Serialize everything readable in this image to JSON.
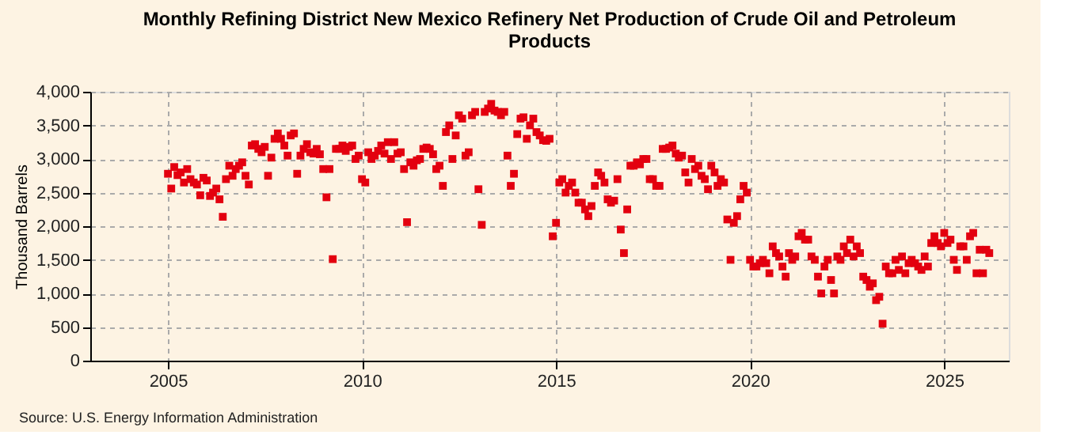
{
  "chart_data": {
    "type": "scatter",
    "title": "Monthly Refining District New Mexico Refinery Net Production of Crude Oil and Petroleum Products",
    "ylabel": "Thousand Barrels",
    "annotations": [
      "Source: U.S. Energy Information Administration"
    ],
    "marker": "square",
    "grid": true,
    "legend": false,
    "xlim": [
      "2003-01",
      "2026-09"
    ],
    "xticks": [
      "2005",
      "2010",
      "2015",
      "2020",
      "2025"
    ],
    "ylim": [
      0,
      4000
    ],
    "yticks": [
      0,
      {
        "value": 500,
        "label": "500"
      },
      {
        "value": 1000,
        "label": "1,000"
      },
      {
        "value": 1500,
        "label": "1,500"
      },
      {
        "value": 2000,
        "label": "2,000"
      },
      {
        "value": 2500,
        "label": "2,500"
      },
      {
        "value": 3000,
        "label": "3,000"
      },
      {
        "value": 3500,
        "label": "3,500"
      },
      {
        "value": 4000,
        "label": "4,000"
      }
    ],
    "series": [
      {
        "color": "#e3000f",
        "x": [
          "2005-01",
          "2005-02",
          "2005-03",
          "2005-04",
          "2005-05",
          "2005-06",
          "2005-07",
          "2005-08",
          "2005-09",
          "2005-10",
          "2005-11",
          "2005-12",
          "2006-01",
          "2006-02",
          "2006-03",
          "2006-04",
          "2006-05",
          "2006-06",
          "2006-07",
          "2006-08",
          "2006-09",
          "2006-10",
          "2006-11",
          "2006-12",
          "2007-01",
          "2007-02",
          "2007-03",
          "2007-04",
          "2007-05",
          "2007-06",
          "2007-07",
          "2007-08",
          "2007-09",
          "2007-10",
          "2007-11",
          "2007-12",
          "2008-01",
          "2008-02",
          "2008-03",
          "2008-04",
          "2008-05",
          "2008-06",
          "2008-07",
          "2008-08",
          "2008-09",
          "2008-10",
          "2008-11",
          "2008-12",
          "2009-01",
          "2009-02",
          "2009-03",
          "2009-04",
          "2009-05",
          "2009-06",
          "2009-07",
          "2009-08",
          "2009-09",
          "2009-10",
          "2009-11",
          "2009-12",
          "2010-01",
          "2010-02",
          "2010-03",
          "2010-04",
          "2010-05",
          "2010-06",
          "2010-07",
          "2010-08",
          "2010-09",
          "2010-10",
          "2010-11",
          "2010-12",
          "2011-01",
          "2011-02",
          "2011-03",
          "2011-04",
          "2011-05",
          "2011-06",
          "2011-07",
          "2011-08",
          "2011-09",
          "2011-10",
          "2011-11",
          "2011-12",
          "2012-01",
          "2012-02",
          "2012-03",
          "2012-04",
          "2012-05",
          "2012-06",
          "2012-07",
          "2012-08",
          "2012-09",
          "2012-10",
          "2012-11",
          "2012-12",
          "2013-01",
          "2013-02",
          "2013-03",
          "2013-04",
          "2013-05",
          "2013-06",
          "2013-07",
          "2013-08",
          "2013-09",
          "2013-10",
          "2013-11",
          "2013-12",
          "2014-01",
          "2014-02",
          "2014-03",
          "2014-04",
          "2014-05",
          "2014-06",
          "2014-07",
          "2014-08",
          "2014-09",
          "2014-10",
          "2014-11",
          "2014-12",
          "2015-01",
          "2015-02",
          "2015-03",
          "2015-04",
          "2015-05",
          "2015-06",
          "2015-07",
          "2015-08",
          "2015-09",
          "2015-10",
          "2015-11",
          "2015-12",
          "2016-01",
          "2016-02",
          "2016-03",
          "2016-04",
          "2016-05",
          "2016-06",
          "2016-07",
          "2016-08",
          "2016-09",
          "2016-10",
          "2016-11",
          "2016-12",
          "2017-01",
          "2017-02",
          "2017-03",
          "2017-04",
          "2017-05",
          "2017-06",
          "2017-07",
          "2017-08",
          "2017-09",
          "2017-10",
          "2017-11",
          "2017-12",
          "2018-01",
          "2018-02",
          "2018-03",
          "2018-04",
          "2018-05",
          "2018-06",
          "2018-07",
          "2018-08",
          "2018-09",
          "2018-10",
          "2018-11",
          "2018-12",
          "2019-01",
          "2019-02",
          "2019-03",
          "2019-04",
          "2019-05",
          "2019-06",
          "2019-07",
          "2019-08",
          "2019-09",
          "2019-10",
          "2019-11",
          "2019-12",
          "2020-01",
          "2020-02",
          "2020-03",
          "2020-04",
          "2020-05",
          "2020-06",
          "2020-07",
          "2020-08",
          "2020-09",
          "2020-10",
          "2020-11",
          "2020-12",
          "2021-01",
          "2021-02",
          "2021-03",
          "2021-04",
          "2021-05",
          "2021-06",
          "2021-07",
          "2021-08",
          "2021-09",
          "2021-10",
          "2021-11",
          "2021-12",
          "2022-01",
          "2022-02",
          "2022-03",
          "2022-04",
          "2022-05",
          "2022-06",
          "2022-07",
          "2022-08",
          "2022-09",
          "2022-10",
          "2022-11",
          "2022-12",
          "2023-01",
          "2023-02",
          "2023-03",
          "2023-04",
          "2023-05",
          "2023-06",
          "2023-07",
          "2023-08",
          "2023-09",
          "2023-10",
          "2023-11",
          "2023-12",
          "2024-01",
          "2024-02",
          "2024-03",
          "2024-04",
          "2024-05",
          "2024-06",
          "2024-07",
          "2024-08",
          "2024-09",
          "2024-10",
          "2024-11",
          "2024-12",
          "2025-01",
          "2025-02",
          "2025-03",
          "2025-04",
          "2025-05",
          "2025-06",
          "2025-07",
          "2025-08",
          "2025-09",
          "2025-10",
          "2025-11",
          "2025-12",
          "2026-01",
          "2026-02",
          "2026-03"
        ],
        "values": [
          2780,
          2560,
          2880,
          2760,
          2800,
          2650,
          2850,
          2700,
          2650,
          2620,
          2460,
          2720,
          2680,
          2450,
          2500,
          2560,
          2400,
          2140,
          2700,
          2900,
          2750,
          2850,
          2900,
          2950,
          2750,
          2620,
          3200,
          3220,
          3150,
          3100,
          3180,
          2750,
          3020,
          3300,
          3380,
          3300,
          3200,
          3050,
          3350,
          3380,
          2780,
          3050,
          3150,
          3220,
          3100,
          3080,
          3150,
          3070,
          2850,
          2430,
          2850,
          1510,
          3150,
          3150,
          3200,
          3120,
          3180,
          3200,
          3000,
          3050,
          2700,
          2650,
          3100,
          3000,
          3050,
          3120,
          3200,
          3080,
          3250,
          3000,
          3250,
          3080,
          3100,
          2850,
          2060,
          2950,
          2900,
          2980,
          3000,
          3150,
          3170,
          3150,
          3070,
          2850,
          2900,
          2600,
          3400,
          3500,
          3000,
          3350,
          3650,
          3600,
          3050,
          3100,
          3650,
          3700,
          2550,
          2020,
          3700,
          3750,
          3820,
          3720,
          3700,
          3650,
          3700,
          3050,
          2600,
          2780,
          3370,
          3600,
          3620,
          3300,
          3500,
          3600,
          3400,
          3350,
          3280,
          3270,
          3300,
          1850,
          2050,
          2650,
          2700,
          2500,
          2600,
          2650,
          2500,
          2350,
          2350,
          2250,
          2150,
          2300,
          2600,
          2800,
          2750,
          2650,
          2400,
          2350,
          2380,
          2700,
          1950,
          1600,
          2250,
          2900,
          2900,
          2950,
          2920,
          3000,
          3000,
          2700,
          2700,
          2600,
          2600,
          3150,
          3150,
          3170,
          3200,
          3080,
          3020,
          3050,
          2800,
          2650,
          3000,
          2850,
          2900,
          2750,
          2700,
          2550,
          2900,
          2800,
          2600,
          2700,
          2650,
          2100,
          1500,
          2050,
          2150,
          2400,
          2600,
          2500,
          1500,
          1400,
          1400,
          1450,
          1500,
          1450,
          1300,
          1700,
          1600,
          1550,
          1400,
          1250,
          1600,
          1500,
          1550,
          1850,
          1900,
          1800,
          1800,
          1550,
          1500,
          1250,
          1000,
          1400,
          1500,
          1200,
          1000,
          1550,
          1500,
          1700,
          1600,
          1800,
          1550,
          1700,
          1600,
          1250,
          1200,
          1100,
          1150,
          900,
          950,
          550,
          1400,
          1300,
          1300,
          1500,
          1350,
          1550,
          1300,
          1450,
          1500,
          1450,
          1400,
          1350,
          1550,
          1400,
          1750,
          1850,
          1750,
          1700,
          1900,
          1750,
          1800,
          1500,
          1350,
          1700,
          1700,
          1500,
          1850,
          1900,
          1300,
          1650,
          1300,
          1650,
          1600
        ]
      }
    ]
  }
}
